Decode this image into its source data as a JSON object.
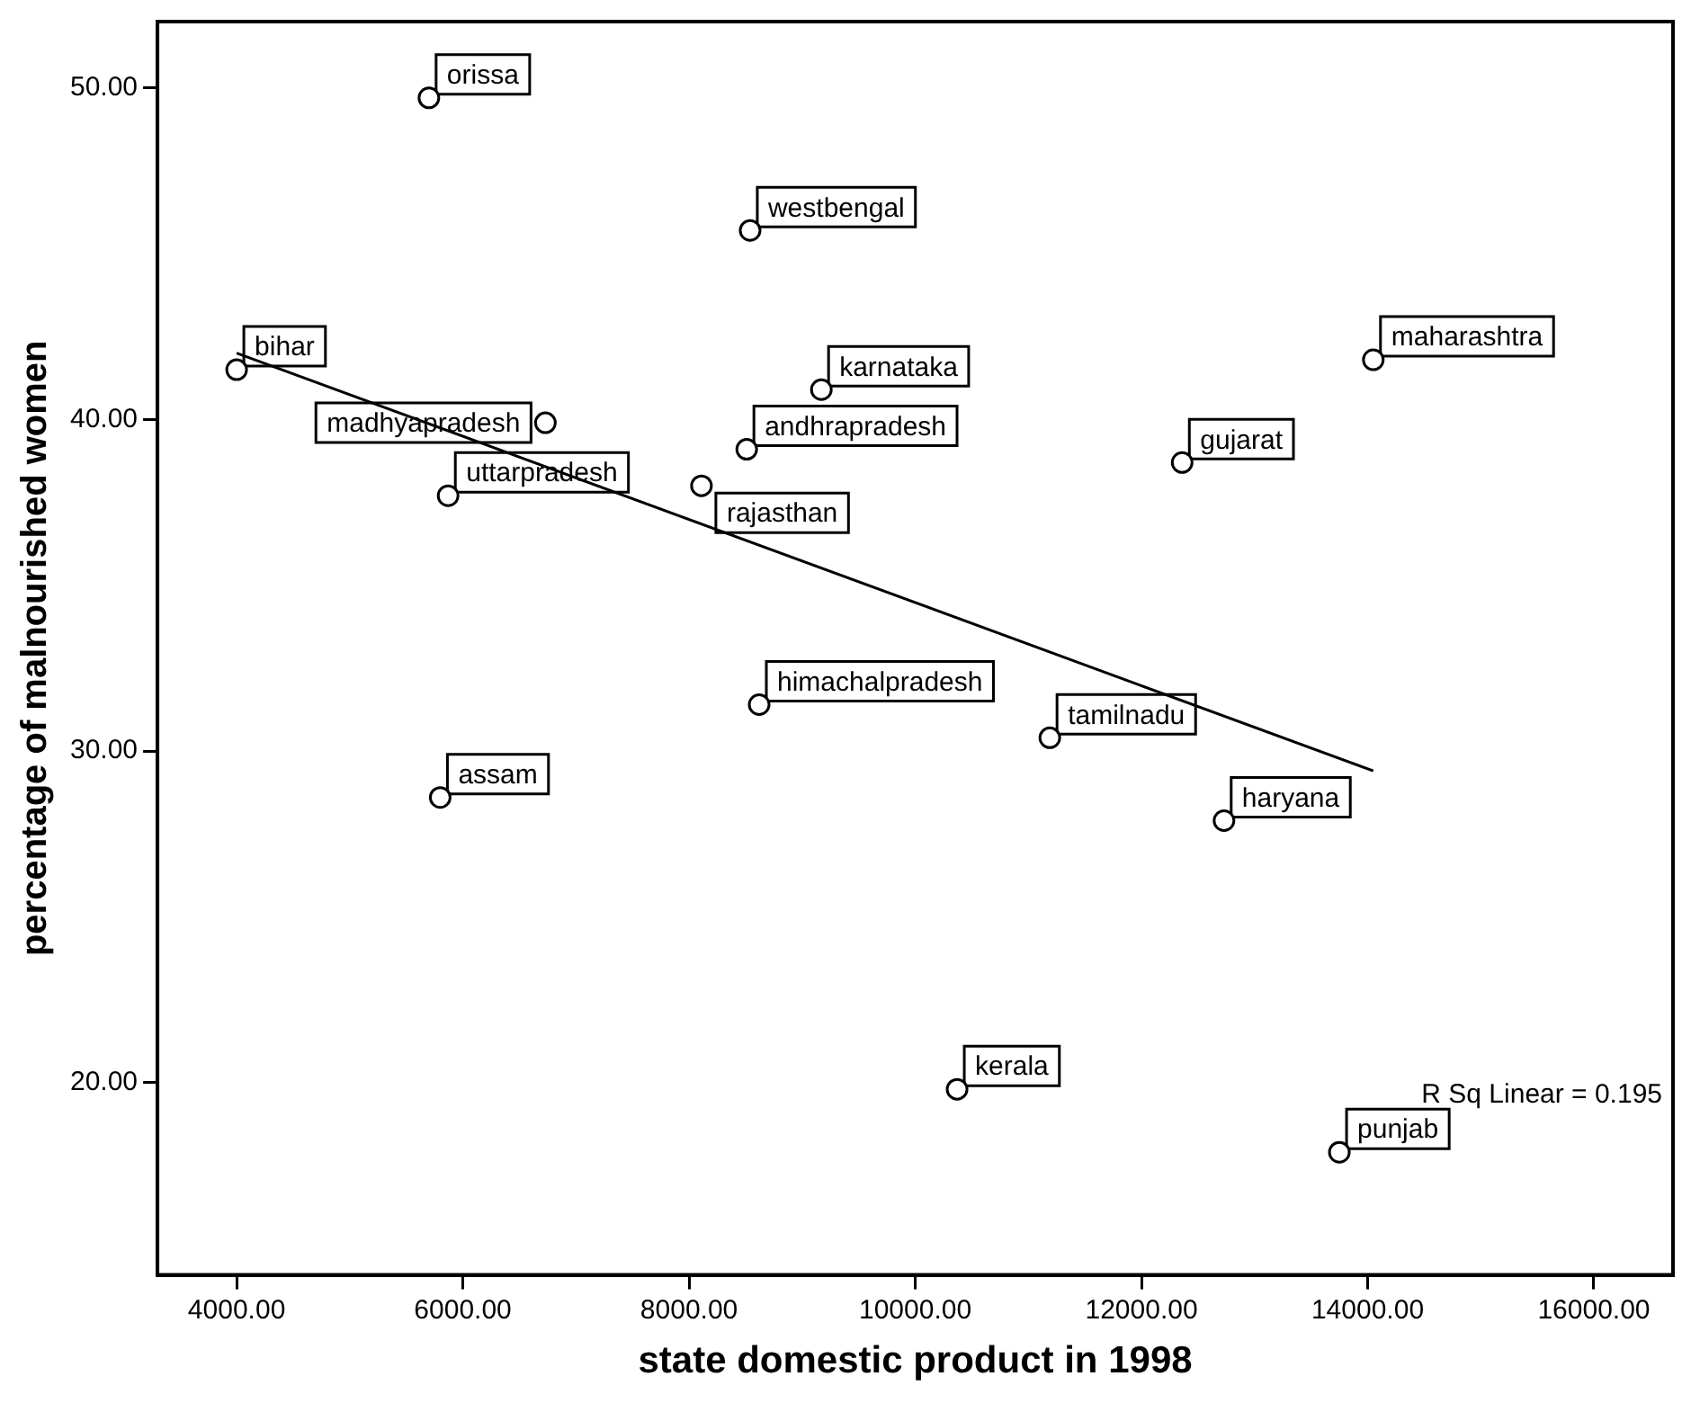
{
  "chart_data": {
    "type": "scatter",
    "xlabel": "state domestic product in 1998",
    "ylabel": "percentage of malnourished women",
    "xlim": [
      3300,
      16700
    ],
    "ylim": [
      14.2,
      52
    ],
    "xticks": [
      {
        "value": 4000,
        "label": "4000.00"
      },
      {
        "value": 6000,
        "label": "6000.00"
      },
      {
        "value": 8000,
        "label": "8000.00"
      },
      {
        "value": 10000,
        "label": "10000.00"
      },
      {
        "value": 12000,
        "label": "12000.00"
      },
      {
        "value": 14000,
        "label": "14000.00"
      },
      {
        "value": 16000,
        "label": "16000.00"
      }
    ],
    "yticks": [
      {
        "value": 20,
        "label": "20.00"
      },
      {
        "value": 30,
        "label": "30.00"
      },
      {
        "value": 40,
        "label": "40.00"
      },
      {
        "value": 50,
        "label": "50.00"
      }
    ],
    "grid": false,
    "legend": false,
    "marker": "circle",
    "annotations": [
      "R Sq Linear = 0.195"
    ],
    "series": [
      {
        "name": "orissa",
        "color": "#000000",
        "x": [
          5700
        ],
        "values": [
          49.7
        ]
      },
      {
        "name": "westbengal",
        "color": "#000000",
        "x": [
          8540
        ],
        "values": [
          45.7
        ]
      },
      {
        "name": "bihar",
        "color": "#000000",
        "x": [
          4000
        ],
        "values": [
          41.5
        ]
      },
      {
        "name": "maharashtra",
        "color": "#000000",
        "x": [
          14050
        ],
        "values": [
          41.8
        ]
      },
      {
        "name": "karnataka",
        "color": "#000000",
        "x": [
          9170
        ],
        "values": [
          40.9
        ]
      },
      {
        "name": "madhyapradesh",
        "color": "#000000",
        "x": [
          6730
        ],
        "values": [
          39.9
        ]
      },
      {
        "name": "andhrapradesh",
        "color": "#000000",
        "x": [
          8510
        ],
        "values": [
          39.1
        ]
      },
      {
        "name": "gujarat",
        "color": "#000000",
        "x": [
          12360
        ],
        "values": [
          38.7
        ]
      },
      {
        "name": "uttarpradesh",
        "color": "#000000",
        "x": [
          5870
        ],
        "values": [
          37.7
        ]
      },
      {
        "name": "rajasthan",
        "color": "#000000",
        "x": [
          8110
        ],
        "values": [
          38.0
        ]
      },
      {
        "name": "himachalpradesh",
        "color": "#000000",
        "x": [
          8620
        ],
        "values": [
          31.4
        ]
      },
      {
        "name": "tamilnadu",
        "color": "#000000",
        "x": [
          11190
        ],
        "values": [
          30.4
        ]
      },
      {
        "name": "assam",
        "color": "#000000",
        "x": [
          5800
        ],
        "values": [
          28.6
        ]
      },
      {
        "name": "haryana",
        "color": "#000000",
        "x": [
          12730
        ],
        "values": [
          27.9
        ]
      },
      {
        "name": "kerala",
        "color": "#000000",
        "x": [
          10370
        ],
        "values": [
          19.8
        ]
      },
      {
        "name": "punjab",
        "color": "#000000",
        "x": [
          13750
        ],
        "values": [
          17.9
        ]
      },
      {
        "type": "line",
        "color": "#000000",
        "x": [
          4000,
          14050
        ],
        "values": [
          42.0,
          29.4
        ],
        "marker": "none",
        "line_style": "solid"
      }
    ]
  }
}
